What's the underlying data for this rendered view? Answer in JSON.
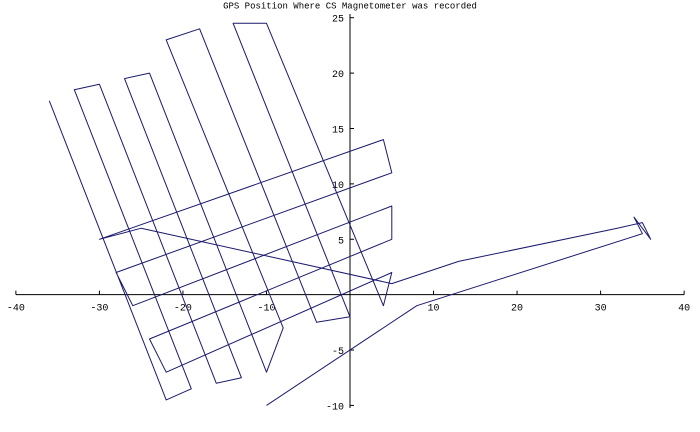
{
  "chart_data": {
    "type": "line",
    "title": "GPS Position Where CS Magnetometer was recorded",
    "xlim": [
      -41.9,
      41.9
    ],
    "ylim": [
      -12.4,
      26.6
    ],
    "xticks": [
      -40,
      -30,
      -20,
      -10,
      10,
      20,
      30,
      40
    ],
    "yticks": [
      -10,
      -5,
      5,
      10,
      15,
      20,
      25
    ],
    "series": [
      {
        "color": "#1a1a6e",
        "x": [
          -36,
          -22,
          -19,
          -33,
          -30,
          -16,
          -13,
          -27,
          -24,
          -10,
          -8,
          -22,
          -18,
          -4,
          0,
          -14,
          -10,
          4,
          5,
          -22,
          -24,
          5,
          5,
          -26,
          -28,
          5,
          4,
          -30,
          -25,
          5,
          13,
          32,
          35,
          36,
          34,
          35,
          8,
          -10
        ],
        "y": [
          17.5,
          -9.5,
          -8.5,
          18.5,
          19,
          -8,
          -7.5,
          19.5,
          20,
          -7,
          -3,
          23,
          24,
          -2.5,
          -2,
          24.5,
          24.5,
          -1,
          2,
          -7,
          -4,
          5,
          8,
          -1,
          2,
          11,
          14,
          5,
          6,
          1,
          3,
          6,
          6.5,
          5,
          7,
          5.5,
          -1,
          -10
        ]
      }
    ]
  }
}
